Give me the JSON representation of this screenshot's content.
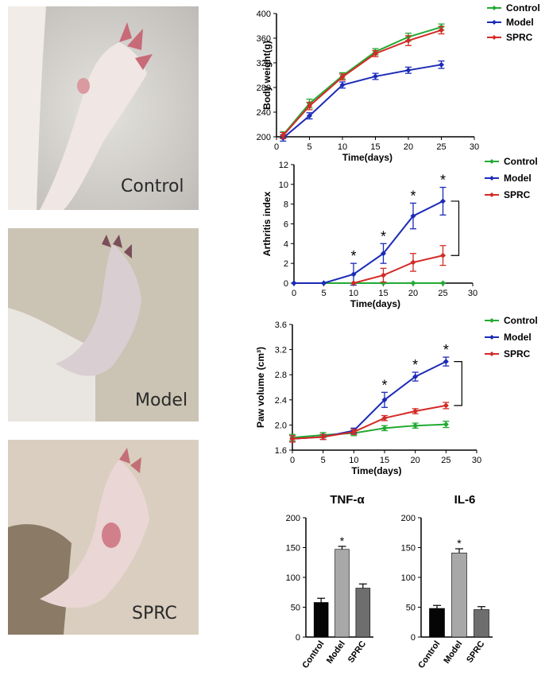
{
  "photos": [
    {
      "label": "Control",
      "bg": "#dcd8d2",
      "tone": "#efe8e2"
    },
    {
      "label": "Model",
      "bg": "#c8c0b0",
      "tone": "#d8cfc8"
    },
    {
      "label": "SPRC",
      "bg": "#d8cdbf",
      "tone": "#e8d4d0"
    }
  ],
  "colors": {
    "control": "#22aa33",
    "model": "#1c2bb8",
    "sprc": "#d42a26"
  },
  "chart_data": [
    {
      "type": "line",
      "ylabel": "Body weight(g)",
      "xlabel": "Time(days)",
      "xlim": [
        0,
        30
      ],
      "ylim": [
        200,
        400
      ],
      "xticks": [
        0,
        5,
        10,
        15,
        20,
        25,
        30
      ],
      "yticks": [
        200,
        240,
        280,
        320,
        360,
        400
      ],
      "x": [
        1,
        5,
        10,
        15,
        20,
        25
      ],
      "legend": "top-right",
      "series": [
        {
          "name": "Control",
          "values": [
            203,
            254,
            299,
            338,
            362,
            378
          ],
          "err": [
            5,
            7,
            5,
            5,
            6,
            5
          ]
        },
        {
          "name": "Model",
          "values": [
            198,
            234,
            284,
            298,
            308,
            317
          ],
          "err": [
            5,
            5,
            5,
            5,
            5,
            6
          ]
        },
        {
          "name": "SPRC",
          "values": [
            202,
            250,
            297,
            335,
            356,
            373
          ],
          "err": [
            5,
            6,
            5,
            5,
            8,
            6
          ]
        }
      ]
    },
    {
      "type": "line",
      "ylabel": "Arthritis index",
      "xlabel": "Time(days)",
      "xlim": [
        0,
        30
      ],
      "ylim": [
        0,
        12
      ],
      "xticks": [
        0,
        5,
        10,
        15,
        20,
        25,
        30
      ],
      "yticks": [
        0,
        2,
        4,
        6,
        8,
        10,
        12
      ],
      "legend": "top-right",
      "annotations": [
        "*",
        "*",
        "*",
        "*"
      ],
      "series": [
        {
          "name": "Control",
          "x": [
            0,
            5,
            10,
            15,
            20,
            25
          ],
          "values": [
            0,
            0,
            0,
            0,
            0,
            0
          ],
          "err": [
            0,
            0,
            0,
            0,
            0,
            0
          ]
        },
        {
          "name": "Model",
          "x": [
            0,
            5,
            10,
            15,
            20,
            25
          ],
          "values": [
            0,
            0,
            0.9,
            3.0,
            6.8,
            8.3
          ],
          "err": [
            0,
            0,
            1.1,
            1.0,
            1.3,
            1.4
          ]
        },
        {
          "name": "SPRC",
          "x": [
            10,
            15,
            20,
            25
          ],
          "values": [
            0,
            0.8,
            2.1,
            2.8
          ],
          "err": [
            0,
            0.7,
            0.9,
            1.0
          ]
        }
      ]
    },
    {
      "type": "line",
      "ylabel": "Paw volume (cm³)",
      "xlabel": "Time(days)",
      "xlim": [
        0,
        30
      ],
      "ylim": [
        1.6,
        3.6
      ],
      "xticks": [
        0,
        5,
        10,
        15,
        20,
        25,
        30
      ],
      "yticks": [
        "1.6",
        "2.0",
        "2.4",
        "2.8",
        "3.2",
        "3.6"
      ],
      "x": [
        0,
        5,
        10,
        15,
        20,
        25
      ],
      "legend": "top-right",
      "annotations": [
        "*",
        "*",
        "*"
      ],
      "series": [
        {
          "name": "Control",
          "values": [
            1.8,
            1.84,
            1.87,
            1.95,
            1.99,
            2.01
          ],
          "err": [
            0.05,
            0.04,
            0.04,
            0.04,
            0.04,
            0.05
          ]
        },
        {
          "name": "Model",
          "values": [
            1.78,
            1.81,
            1.91,
            2.4,
            2.77,
            3.01
          ],
          "err": [
            0.05,
            0.04,
            0.04,
            0.12,
            0.07,
            0.07
          ]
        },
        {
          "name": "SPRC",
          "values": [
            1.78,
            1.81,
            1.89,
            2.11,
            2.22,
            2.31
          ],
          "err": [
            0.05,
            0.04,
            0.04,
            0.04,
            0.04,
            0.05
          ]
        }
      ]
    },
    {
      "type": "bar",
      "title": "TNF-α",
      "categories": [
        "Control",
        "Model",
        "SPRC"
      ],
      "values": [
        58,
        147,
        82
      ],
      "err": [
        7,
        5,
        7
      ],
      "ylim": [
        0,
        200
      ],
      "yticks": [
        0,
        50,
        100,
        150,
        200
      ],
      "annotations": [
        "",
        "*",
        ""
      ],
      "bar_colors": [
        "#050505",
        "#a8a8a8",
        "#6e6e6e"
      ]
    },
    {
      "type": "bar",
      "title": "IL-6",
      "categories": [
        "Control",
        "Model",
        "SPRC"
      ],
      "values": [
        48,
        141,
        46
      ],
      "err": [
        5,
        7,
        5
      ],
      "ylim": [
        0,
        200
      ],
      "yticks": [
        0,
        50,
        100,
        150,
        200
      ],
      "annotations": [
        "",
        "*",
        ""
      ],
      "bar_colors": [
        "#050505",
        "#a8a8a8",
        "#6e6e6e"
      ]
    }
  ]
}
